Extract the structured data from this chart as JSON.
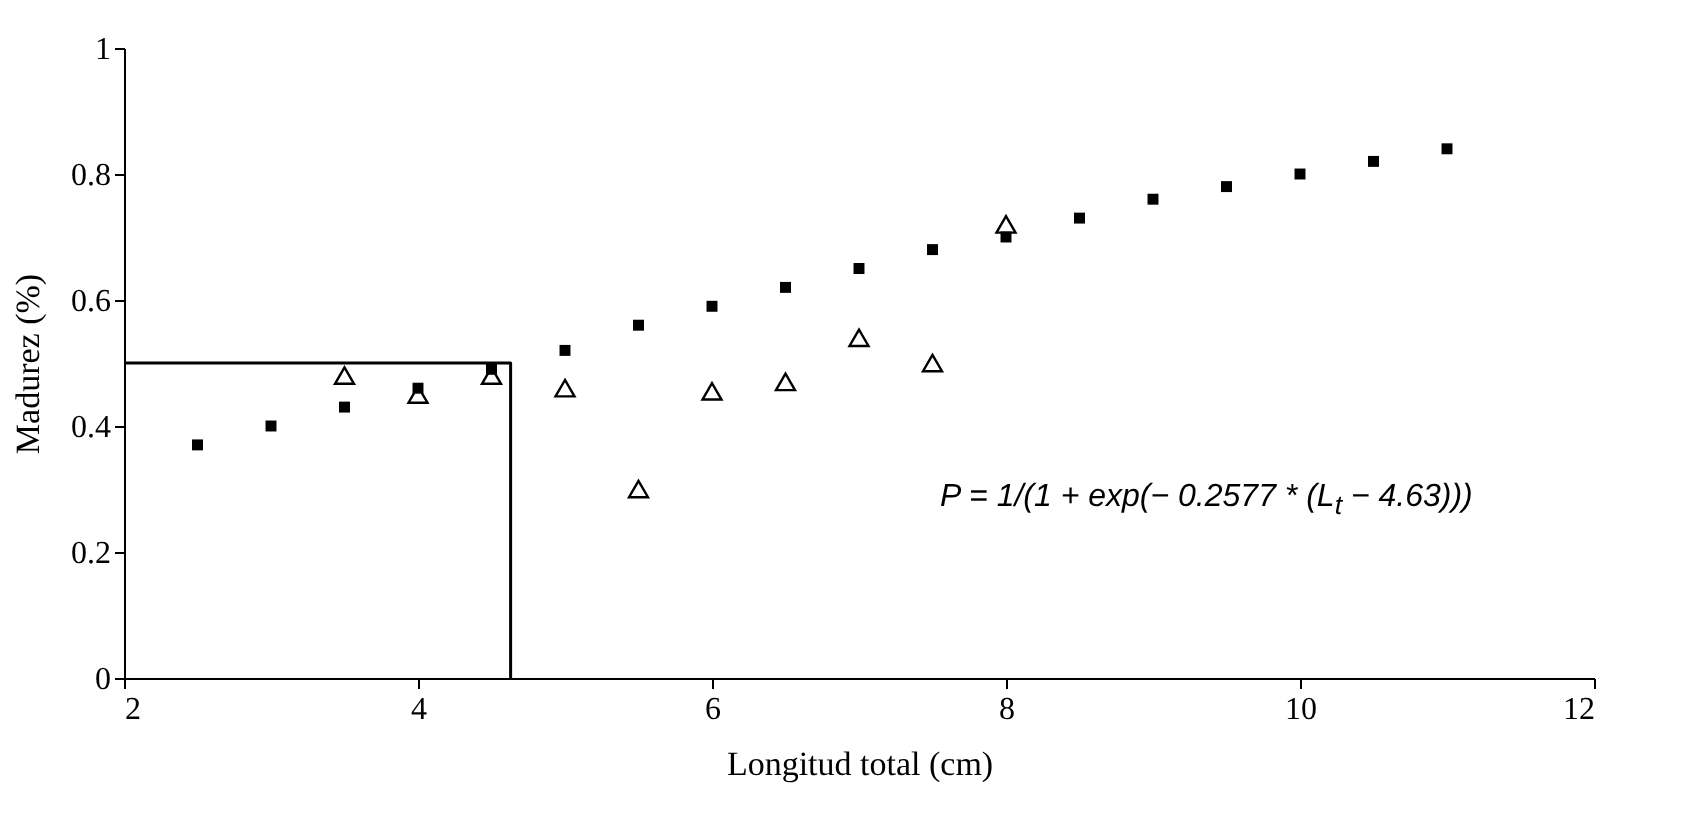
{
  "chart_data": {
    "type": "scatter",
    "xlabel": "Longitud  total (cm)",
    "ylabel": "Madurez (%)",
    "xlim": [
      2,
      12
    ],
    "xticks": [
      2,
      4,
      6,
      8,
      10,
      12
    ],
    "ylim": [
      0,
      1
    ],
    "yticks": [
      0,
      0.2,
      0.4,
      0.6,
      0.8,
      1
    ],
    "series": [
      {
        "type": "scatter",
        "marker": "square",
        "color": "#000000",
        "x": [
          2.5,
          3,
          3.5,
          4,
          4.5,
          5,
          5.5,
          6,
          6.5,
          7,
          7.5,
          8,
          8.5,
          9,
          9.5,
          10,
          10.5,
          11
        ],
        "values": [
          0.37,
          0.4,
          0.43,
          0.46,
          0.49,
          0.52,
          0.56,
          0.59,
          0.62,
          0.65,
          0.68,
          0.7,
          0.73,
          0.76,
          0.78,
          0.8,
          0.82,
          0.84
        ]
      },
      {
        "marker": "triangle",
        "color": "#000000",
        "x": [
          3.5,
          4,
          4.5,
          5,
          5.5,
          6,
          6.5,
          7,
          7.5,
          8
        ],
        "values": [
          0.48,
          0.45,
          0.48,
          0.46,
          0.3,
          0.455,
          0.47,
          0.54,
          0.5,
          0.72
        ]
      },
      {
        "type": "line",
        "marker": "none",
        "color": "#000000",
        "x": [
          2,
          4.63,
          4.63
        ],
        "values": [
          0.5,
          0.5,
          0
        ]
      }
    ],
    "annotations": [
      "P = 1/(1 + exp(− 0.2577 * (L$_{t}$ − 4.63)))"
    ]
  }
}
